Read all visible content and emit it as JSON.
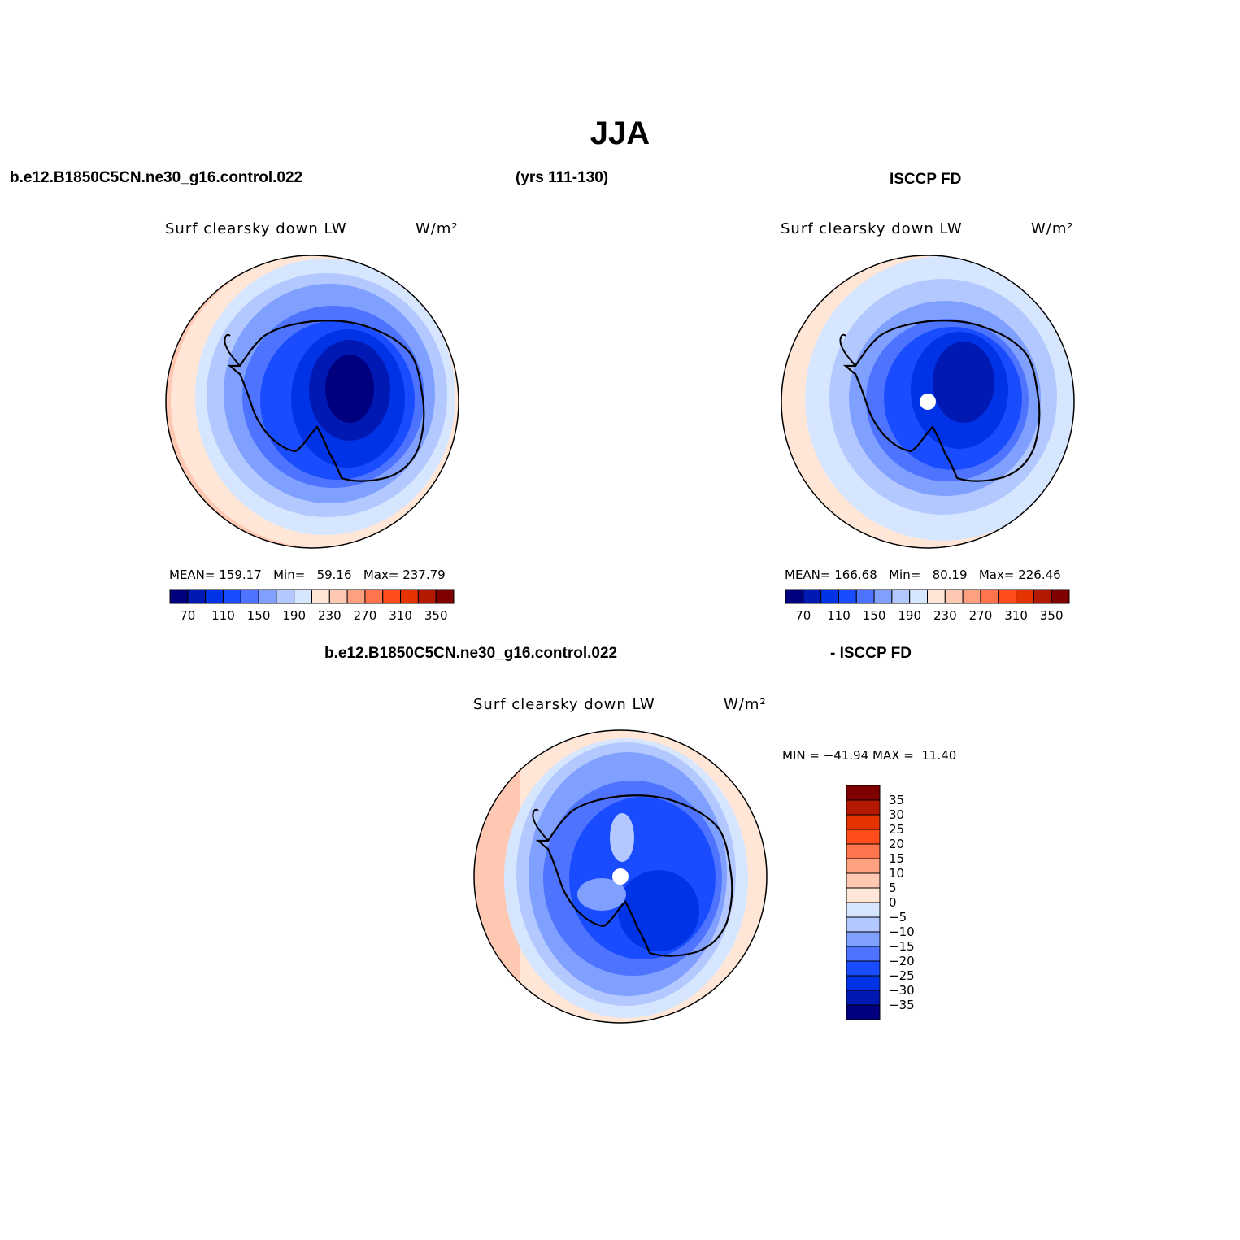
{
  "title": "JJA",
  "header": {
    "case_name": "b.e12.B1850C5CN.ne30_g16.control.022",
    "years": "(yrs 111-130)",
    "obs_name": "ISCCP FD"
  },
  "panels": {
    "model": {
      "variable": "Surf clearsky down LW",
      "units": "W/m²",
      "stats": {
        "mean_label": "MEAN=",
        "mean": "159.17",
        "min_label": "Min=",
        "min": "59.16",
        "max_label": "Max=",
        "max": "237.79"
      }
    },
    "obs": {
      "variable": "Surf clearsky down LW",
      "units": "W/m²",
      "stats": {
        "mean_label": "MEAN=",
        "mean": "166.68",
        "min_label": "Min=",
        "min": "80.19",
        "max_label": "Max=",
        "max": "226.46"
      }
    },
    "diff": {
      "case_name": "b.e12.B1850C5CN.ne30_g16.control.022",
      "minus_label": "- ISCCP FD",
      "variable": "Surf clearsky down LW",
      "units": "W/m²",
      "stats": {
        "min_label": "MIN =",
        "min": "−41.94",
        "max_label": "MAX =",
        "max": "11.40"
      }
    }
  },
  "colorbar_abs": {
    "orientation": "horizontal",
    "colors": [
      "#00007f",
      "#0019b2",
      "#0033e5",
      "#1a4cff",
      "#4d73ff",
      "#80a0ff",
      "#b3c8ff",
      "#d6e6ff",
      "#ffe6d6",
      "#ffc8b3",
      "#ffa080",
      "#ff734d",
      "#ff4c1a",
      "#e53300",
      "#b21900",
      "#7f0000"
    ],
    "tick_labels": [
      "70",
      "110",
      "150",
      "190",
      "230",
      "270",
      "310",
      "350"
    ]
  },
  "colorbar_diff": {
    "orientation": "vertical",
    "colors_top_to_bottom": [
      "#7f0000",
      "#b21900",
      "#e53300",
      "#ff4c1a",
      "#ff734d",
      "#ffa080",
      "#ffc8b3",
      "#ffe6d6",
      "#d6e6ff",
      "#b3c8ff",
      "#80a0ff",
      "#4d73ff",
      "#1a4cff",
      "#0033e5",
      "#0019b2",
      "#00007f"
    ],
    "tick_labels": [
      "35",
      "30",
      "25",
      "20",
      "15",
      "10",
      "5",
      "0",
      "−5",
      "−10",
      "−15",
      "−20",
      "−25",
      "−30",
      "−35"
    ]
  },
  "map_colors": {
    "ocean_warm": "#ffe6d6",
    "ocean_warmer": "#ffc8b3",
    "coast_pale": "#d6e6ff",
    "mid_blue": "#80a0ff",
    "deep_blue": "#0019b2",
    "darkest": "#00007f",
    "coastline": "#000000"
  }
}
